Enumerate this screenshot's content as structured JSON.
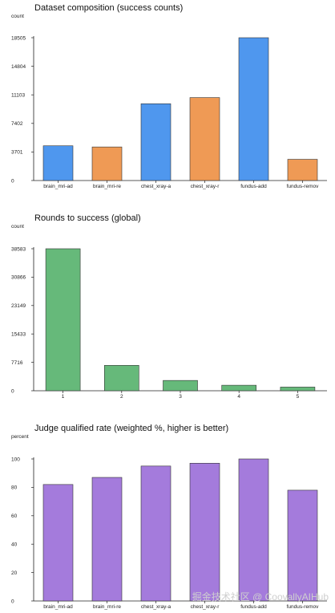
{
  "chart_data": [
    {
      "type": "bar",
      "title": "Dataset composition (success counts)",
      "ylabel": "count",
      "xlabel": "",
      "categories": [
        "brain_mri-ad",
        "brain_mri-re",
        "chest_xray-a",
        "chest_xray-r",
        "fundus-add",
        "fundus-remov"
      ],
      "values": [
        4500,
        4350,
        9950,
        10750,
        18505,
        2750
      ],
      "colors": [
        "#4f97ee",
        "#ef9a55",
        "#4f97ee",
        "#ef9a55",
        "#4f97ee",
        "#ef9a55"
      ],
      "yticks": [
        "0",
        "3701",
        "7402",
        "11103",
        "14804",
        "18505"
      ],
      "ylim": [
        0,
        18505
      ],
      "grid": false
    },
    {
      "type": "bar",
      "title": "Rounds to success (global)",
      "ylabel": "count",
      "xlabel": "",
      "categories": [
        "1",
        "2",
        "3",
        "4",
        "5"
      ],
      "values": [
        38583,
        6900,
        2800,
        1500,
        1000
      ],
      "colors": [
        "#66b97a",
        "#66b97a",
        "#66b97a",
        "#66b97a",
        "#66b97a"
      ],
      "yticks": [
        "0",
        "7716",
        "15433",
        "23149",
        "30866",
        "38583"
      ],
      "ylim": [
        0,
        38583
      ],
      "grid": false
    },
    {
      "type": "bar",
      "title": "Judge qualified rate (weighted %, higher is better)",
      "ylabel": "percent",
      "xlabel": "",
      "categories": [
        "brain_mri-ad",
        "brain_mri-re",
        "chest_xray-a",
        "chest_xray-r",
        "fundus-add",
        "fundus-remov"
      ],
      "values": [
        82,
        87,
        95,
        97,
        100,
        78
      ],
      "colors": [
        "#a47bdc",
        "#a47bdc",
        "#a47bdc",
        "#a47bdc",
        "#a47bdc",
        "#a47bdc"
      ],
      "yticks": [
        "0",
        "20",
        "40",
        "60",
        "80",
        "100"
      ],
      "ylim": [
        0,
        100
      ],
      "grid": false
    }
  ],
  "watermark": "掘金技术社区 @ CoovallyAIHub"
}
